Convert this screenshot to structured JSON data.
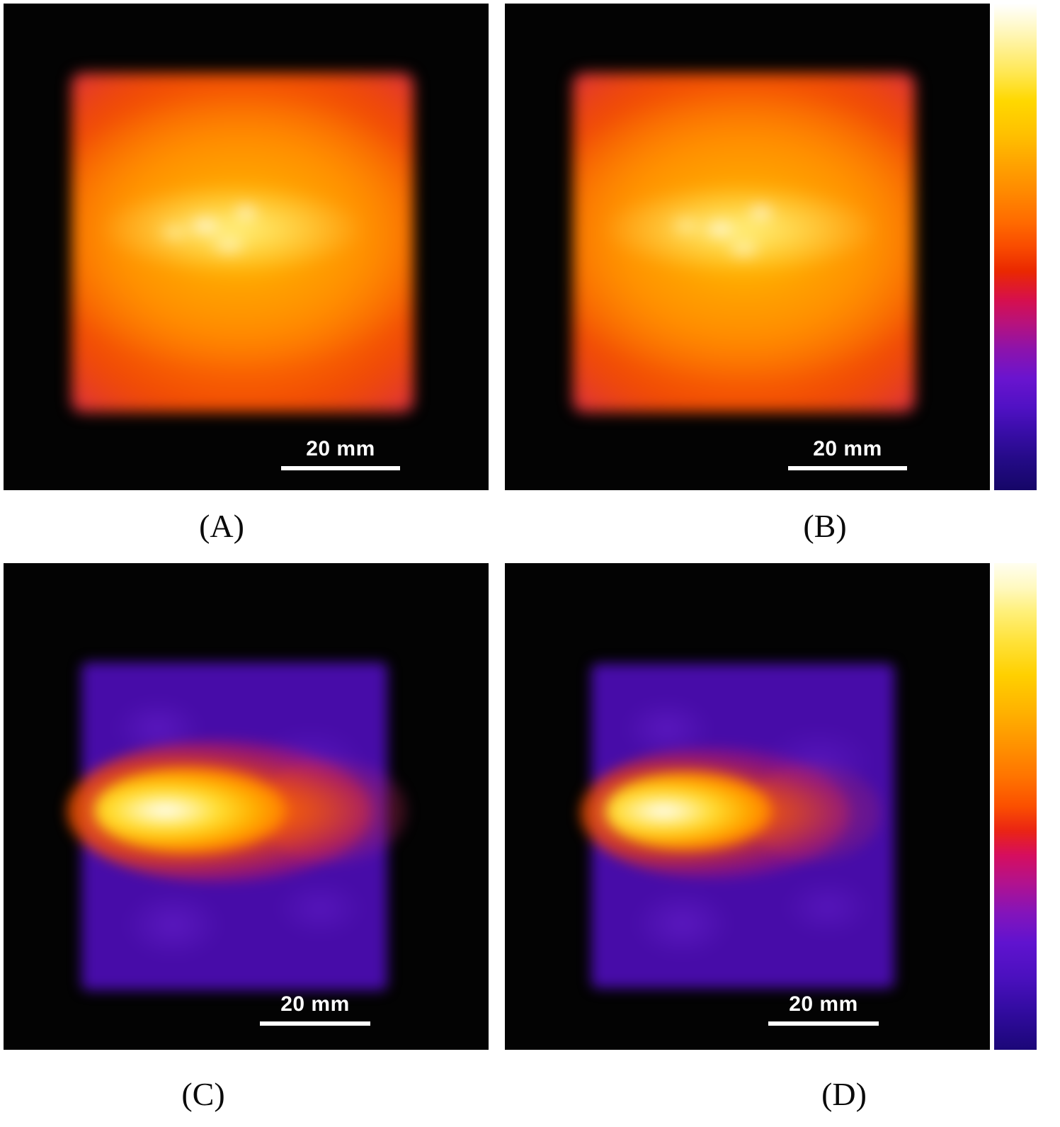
{
  "figure": {
    "description": "Four-panel 2D intensity heatmap figure (A, B, C, D) on black backgrounds with white 20 mm scale bars and two vertical color scale bars (fire/hot LUT: dark blue - purple - magenta - red - orange - yellow - white)",
    "background_color": "#ffffff",
    "panel_background": "#000000",
    "scale_bar_color": "#ffffff",
    "label_color": "#000000"
  },
  "panels": [
    {
      "id": "A",
      "label": "(A)",
      "scale_label": "20 mm"
    },
    {
      "id": "B",
      "label": "(B)",
      "scale_label": "20 mm"
    },
    {
      "id": "C",
      "label": "(C)",
      "scale_label": "20 mm"
    },
    {
      "id": "D",
      "label": "(D)",
      "scale_label": "20 mm"
    }
  ],
  "colorbars": [
    {
      "id": "top",
      "applies_to": [
        "A",
        "B"
      ],
      "orientation": "vertical",
      "tick_labels": [],
      "gradient_top_to_bottom": [
        "#ffffff",
        "#ffe856",
        "#ffc000",
        "#ff8800",
        "#f94b00",
        "#ea2800",
        "#d60f4e",
        "#8d13ab",
        "#5011c4",
        "#230a85",
        "#150667"
      ]
    },
    {
      "id": "bottom",
      "applies_to": [
        "C",
        "D"
      ],
      "orientation": "vertical",
      "tick_labels": [],
      "gradient_top_to_bottom": [
        "#fffef0",
        "#ffe23a",
        "#ffb400",
        "#ff7300",
        "#fb4f00",
        "#d60e5e",
        "#8314bb",
        "#6013cf",
        "#320ba0",
        "#1b0778"
      ]
    }
  ],
  "chart_data": [
    {
      "type": "heatmap",
      "panel": "A",
      "title": "",
      "xlabel": "",
      "ylabel": "",
      "colormap": "black-blue-purple-magenta-red-orange-yellow-white (fire/hot LUT)",
      "scale_bar": "20 mm",
      "value_scale": "relative intensity 0-1 (colorbar carries no numeric ticks)",
      "field_size_mm_approx": [
        58,
        57
      ],
      "grid_rows": 7,
      "grid_cols": 7,
      "values": [
        [
          0.22,
          0.28,
          0.3,
          0.3,
          0.3,
          0.28,
          0.22
        ],
        [
          0.3,
          0.5,
          0.58,
          0.6,
          0.55,
          0.48,
          0.3
        ],
        [
          0.35,
          0.62,
          0.82,
          0.85,
          0.78,
          0.6,
          0.38
        ],
        [
          0.4,
          0.72,
          0.95,
          1.0,
          0.9,
          0.68,
          0.42
        ],
        [
          0.35,
          0.6,
          0.8,
          0.82,
          0.75,
          0.58,
          0.36
        ],
        [
          0.3,
          0.48,
          0.55,
          0.56,
          0.52,
          0.46,
          0.3
        ],
        [
          0.22,
          0.28,
          0.3,
          0.3,
          0.28,
          0.26,
          0.22
        ]
      ],
      "notes": "Broad square field; mottled yellow-white maximum band across the centre; orange body; purple low-intensity rim; black outside the field"
    },
    {
      "type": "heatmap",
      "panel": "B",
      "title": "",
      "xlabel": "",
      "ylabel": "",
      "colormap": "black-blue-purple-magenta-red-orange-yellow-white (fire/hot LUT)",
      "scale_bar": "20 mm",
      "value_scale": "relative intensity 0-1 (colorbar carries no numeric ticks)",
      "field_size_mm_approx": [
        58,
        57
      ],
      "grid_rows": 7,
      "grid_cols": 7,
      "values": [
        [
          0.22,
          0.28,
          0.3,
          0.3,
          0.3,
          0.28,
          0.22
        ],
        [
          0.3,
          0.52,
          0.6,
          0.62,
          0.58,
          0.5,
          0.3
        ],
        [
          0.36,
          0.64,
          0.85,
          0.88,
          0.8,
          0.62,
          0.38
        ],
        [
          0.4,
          0.72,
          0.96,
          1.0,
          0.92,
          0.7,
          0.42
        ],
        [
          0.35,
          0.6,
          0.8,
          0.84,
          0.76,
          0.58,
          0.36
        ],
        [
          0.3,
          0.48,
          0.56,
          0.58,
          0.54,
          0.46,
          0.3
        ],
        [
          0.22,
          0.28,
          0.3,
          0.3,
          0.28,
          0.26,
          0.22
        ]
      ],
      "notes": "Nearly identical to panel A: broad square field with mottled yellow-white central maximum, orange body and purple rim"
    },
    {
      "type": "heatmap",
      "panel": "C",
      "title": "",
      "xlabel": "",
      "ylabel": "",
      "colormap": "black-blue-purple-magenta-red-orange-yellow-white (fire/hot LUT)",
      "scale_bar": "20 mm",
      "value_scale": "relative intensity 0-1 (colorbar carries no numeric ticks)",
      "field_size_mm_approx": [
        55,
        59
      ],
      "hotspot_length_mm_approx": 34,
      "grid_rows": 7,
      "grid_cols": 7,
      "values": [
        [
          0.12,
          0.14,
          0.14,
          0.13,
          0.12,
          0.12,
          0.11
        ],
        [
          0.14,
          0.18,
          0.18,
          0.16,
          0.14,
          0.13,
          0.12
        ],
        [
          0.3,
          0.5,
          0.45,
          0.32,
          0.22,
          0.16,
          0.13
        ],
        [
          0.6,
          1.0,
          0.95,
          0.65,
          0.4,
          0.22,
          0.15
        ],
        [
          0.32,
          0.55,
          0.5,
          0.36,
          0.25,
          0.17,
          0.13
        ],
        [
          0.14,
          0.18,
          0.18,
          0.16,
          0.14,
          0.13,
          0.12
        ],
        [
          0.11,
          0.13,
          0.13,
          0.12,
          0.12,
          0.11,
          0.1
        ]
      ],
      "notes": "Dim mottled purple square field; intense elongated horizontal hot spot (white-yellow core with orange-red halo) at mid-height near the left edge, fading comet-like toward the right"
    },
    {
      "type": "heatmap",
      "panel": "D",
      "title": "",
      "xlabel": "",
      "ylabel": "",
      "colormap": "black-blue-purple-magenta-red-orange-yellow-white (fire/hot LUT)",
      "scale_bar": "20 mm",
      "value_scale": "relative intensity 0-1 (colorbar carries no numeric ticks)",
      "field_size_mm_approx": [
        55,
        59
      ],
      "hotspot_length_mm_approx": 30,
      "grid_rows": 7,
      "grid_cols": 7,
      "values": [
        [
          0.11,
          0.13,
          0.13,
          0.12,
          0.11,
          0.11,
          0.1
        ],
        [
          0.13,
          0.16,
          0.16,
          0.14,
          0.13,
          0.12,
          0.11
        ],
        [
          0.28,
          0.45,
          0.4,
          0.28,
          0.18,
          0.14,
          0.12
        ],
        [
          0.55,
          1.0,
          0.85,
          0.55,
          0.32,
          0.18,
          0.13
        ],
        [
          0.3,
          0.5,
          0.42,
          0.3,
          0.2,
          0.15,
          0.12
        ],
        [
          0.13,
          0.16,
          0.16,
          0.14,
          0.13,
          0.12,
          0.11
        ],
        [
          0.1,
          0.12,
          0.12,
          0.11,
          0.11,
          0.1,
          0.1
        ]
      ],
      "notes": "Like panel C but with a slightly smaller, weaker hot spot and a shorter rightward tail over the dim purple square field"
    }
  ]
}
